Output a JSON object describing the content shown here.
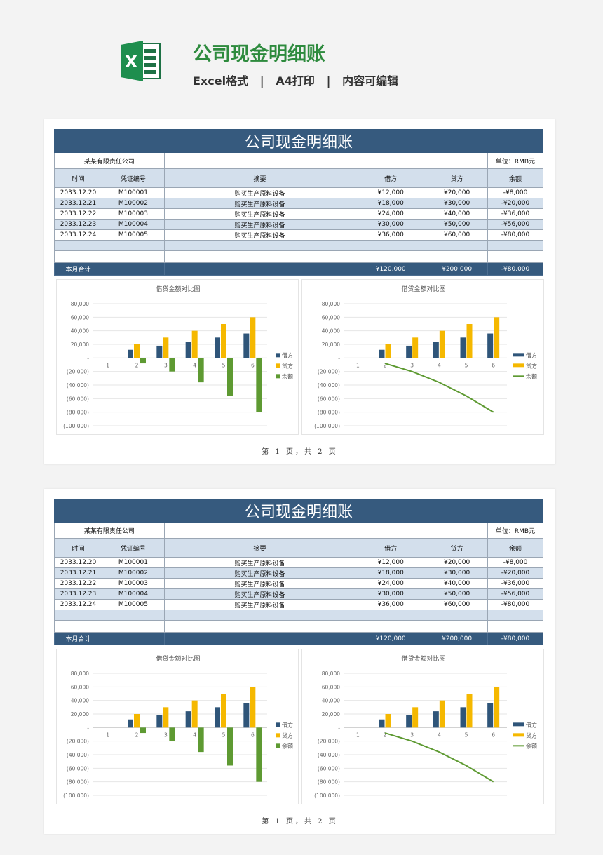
{
  "header": {
    "title": "公司现金明细账",
    "subtitle": "Excel格式   |   A4打印   |   内容可编辑",
    "logo_letter": "X"
  },
  "sheet": {
    "title": "公司现金明细账",
    "company": "某某有限责任公司",
    "unit": "单位：RMB元",
    "columns": [
      "时间",
      "凭证编号",
      "摘要",
      "借方",
      "贷方",
      "余额"
    ],
    "rows": [
      [
        "2033.12.20",
        "M100001",
        "购买生产原料设备",
        "¥12,000",
        "¥20,000",
        "-¥8,000"
      ],
      [
        "2033.12.21",
        "M100002",
        "购买生产原料设备",
        "¥18,000",
        "¥30,000",
        "-¥20,000"
      ],
      [
        "2033.12.22",
        "M100003",
        "购买生产原料设备",
        "¥24,000",
        "¥40,000",
        "-¥36,000"
      ],
      [
        "2033.12.23",
        "M100004",
        "购买生产原料设备",
        "¥30,000",
        "¥50,000",
        "-¥56,000"
      ],
      [
        "2033.12.24",
        "M100005",
        "购买生产原料设备",
        "¥36,000",
        "¥60,000",
        "-¥80,000"
      ]
    ],
    "total": [
      "本月合计",
      "",
      "",
      "¥120,000",
      "¥200,000",
      "-¥80,000"
    ]
  },
  "pages": [
    {
      "label": "第 1 页，共 2 页"
    },
    {
      "label": "第 1 页，共 2 页"
    }
  ],
  "colors": {
    "debit": "#2f5579",
    "credit": "#f5b800",
    "balance": "#5e9a32",
    "header": "#365a7e",
    "brand": "#2e8b3e"
  },
  "chart_data": [
    {
      "type": "bar",
      "title": "借贷金额对比图",
      "categories": [
        "1",
        "2",
        "3",
        "4",
        "5",
        "6"
      ],
      "series": [
        {
          "name": "借方",
          "values": [
            null,
            12000,
            18000,
            24000,
            30000,
            36000
          ]
        },
        {
          "name": "贷方",
          "values": [
            null,
            20000,
            30000,
            40000,
            50000,
            60000
          ]
        },
        {
          "name": "余额",
          "values": [
            null,
            -8000,
            -20000,
            -36000,
            -56000,
            -80000
          ]
        }
      ],
      "yticks": [
        "80,000",
        "60,000",
        "40,000",
        "20,000",
        "-",
        "(20,000)",
        "(40,000)",
        "(60,000)",
        "(80,000)",
        "(100,000)"
      ],
      "ylim": [
        -100000,
        80000
      ],
      "grid": true,
      "legend": "right"
    },
    {
      "type": "bar+line",
      "title": "借贷金额对比图",
      "categories": [
        "1",
        "2",
        "3",
        "4",
        "5",
        "6"
      ],
      "series": [
        {
          "name": "借方",
          "type": "bar",
          "values": [
            null,
            12000,
            18000,
            24000,
            30000,
            36000
          ]
        },
        {
          "name": "贷方",
          "type": "bar",
          "values": [
            null,
            20000,
            30000,
            40000,
            50000,
            60000
          ]
        },
        {
          "name": "余额",
          "type": "line",
          "values": [
            null,
            -8000,
            -20000,
            -36000,
            -56000,
            -80000
          ]
        }
      ],
      "yticks": [
        "80,000",
        "60,000",
        "40,000",
        "20,000",
        "-",
        "(20,000)",
        "(40,000)",
        "(60,000)",
        "(80,000)",
        "(100,000)"
      ],
      "ylim": [
        -100000,
        80000
      ],
      "grid": true,
      "legend": "right"
    }
  ]
}
